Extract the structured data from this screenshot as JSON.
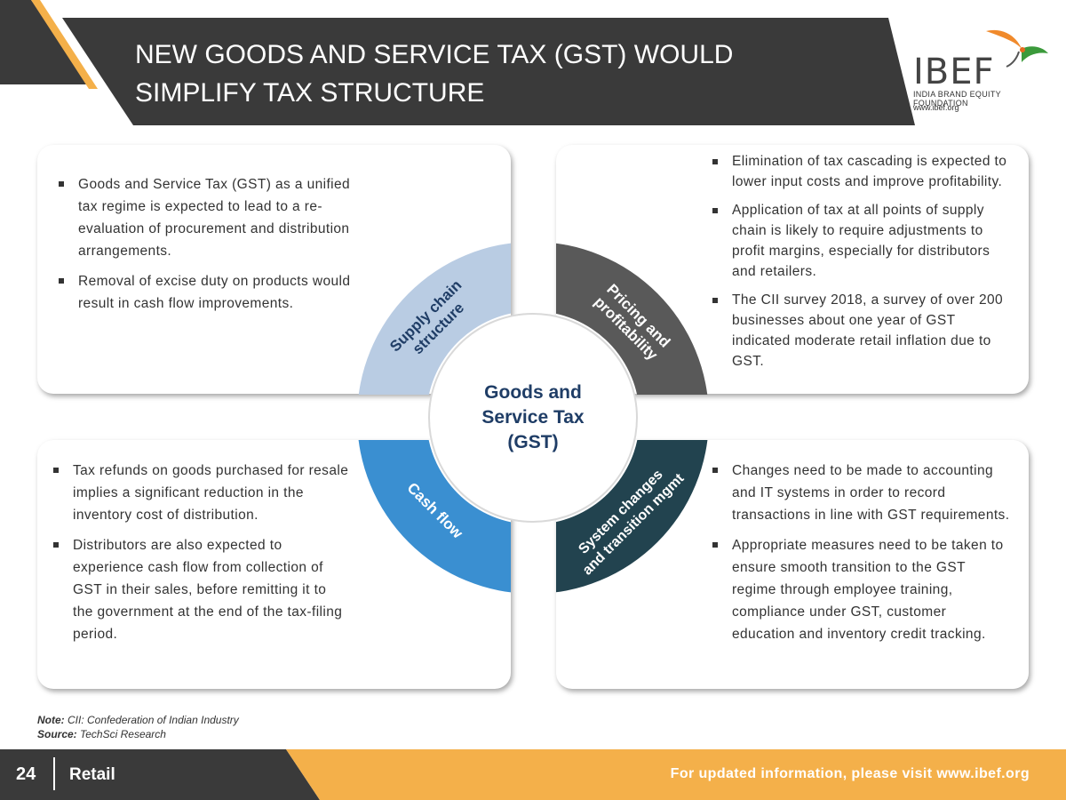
{
  "header": {
    "title": "NEW GOODS AND SERVICE TAX (GST) WOULD\nSIMPLIFY TAX STRUCTURE"
  },
  "logo": {
    "name": "IBEF",
    "subtitle": "INDIA BRAND EQUITY FOUNDATION",
    "url": "www.ibef.org"
  },
  "diagram": {
    "center": "Goods and\nService Tax\n(GST)",
    "segments": [
      {
        "label_lines": [
          "Supply chain",
          "structure"
        ],
        "color": "#b9cce3"
      },
      {
        "label_lines": [
          "Pricing and",
          "profitability"
        ],
        "color": "#595959"
      },
      {
        "label_lines": [
          "Cash flow"
        ],
        "color": "#3a8fd1"
      },
      {
        "label_lines": [
          "System changes",
          "and transition mgmt"
        ],
        "color": "#22434f"
      }
    ]
  },
  "boxes": {
    "top_left": [
      "Goods and Service Tax (GST) as a unified tax regime is expected to lead to a re-evaluation of procurement and distribution arrangements.",
      "Removal of excise duty on products would result in cash flow improvements."
    ],
    "top_right": [
      "Elimination of tax cascading is expected to lower input costs and improve profitability.",
      "Application of tax at all points of supply chain is likely to require adjustments to profit margins, especially for distributors and retailers.",
      "The CII survey 2018, a survey of over 200 businesses about one year of GST indicated moderate retail inflation due to GST."
    ],
    "bottom_left": [
      "Tax refunds on goods purchased for resale implies a significant reduction in the inventory cost of distribution.",
      "Distributors are also expected to experience cash flow from collection of GST in their sales, before remitting it to the government at the end of the tax-filing period."
    ],
    "bottom_right": [
      "Changes need to be made to accounting and IT systems in order to record transactions in line with GST requirements.",
      "Appropriate measures need to be taken to ensure smooth transition to the GST regime through employee training, compliance under GST, customer education and inventory credit tracking."
    ]
  },
  "notes": {
    "note_label": "Note:",
    "note_text": "CII: Confederation of Indian Industry",
    "source_label": "Source:",
    "source_text": "TechSci Research"
  },
  "footer": {
    "page_number": "24",
    "section": "Retail",
    "info": "For updated information, please visit www.ibef.org"
  },
  "colors": {
    "header_bg": "#3a3a3a",
    "accent_orange": "#f4b04a",
    "center_text": "#1f3d66"
  }
}
